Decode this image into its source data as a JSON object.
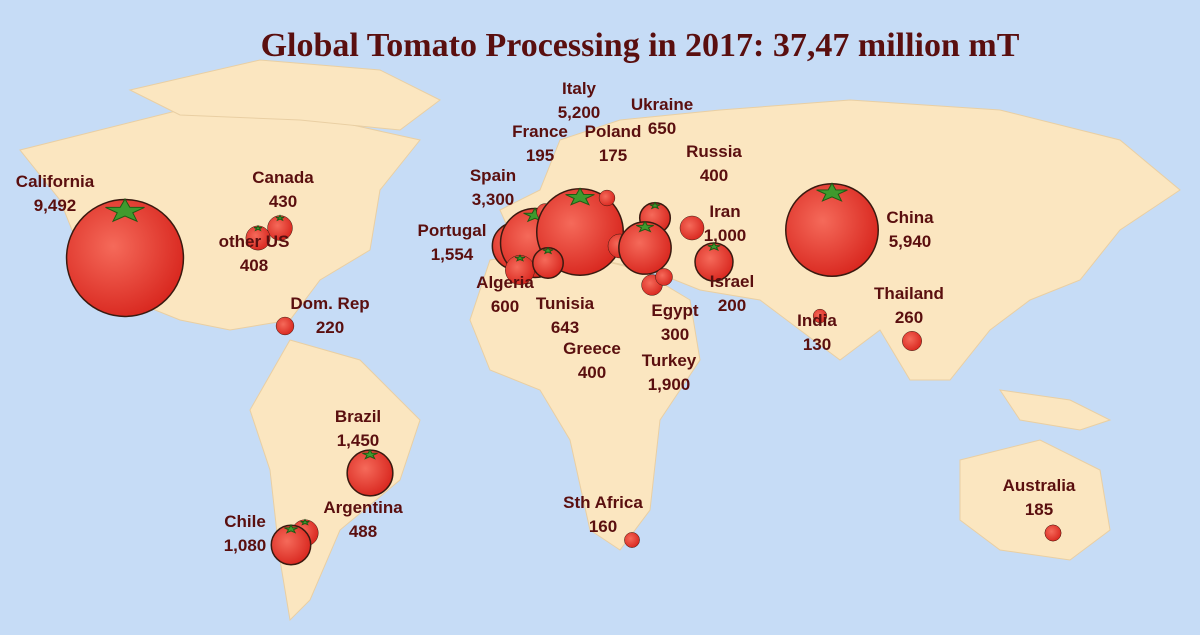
{
  "title": "Global Tomato Processing in 2017: 37,47 million mT",
  "regions": [
    {
      "name": "California",
      "value": 9492,
      "label": "9,492"
    },
    {
      "name": "Canada",
      "value": 430,
      "label": "430"
    },
    {
      "name": "other US",
      "value": 408,
      "label": "408"
    },
    {
      "name": "Dom. Rep",
      "value": 220,
      "label": "220"
    },
    {
      "name": "Brazil",
      "value": 1450,
      "label": "1,450"
    },
    {
      "name": "Argentina",
      "value": 488,
      "label": "488"
    },
    {
      "name": "Chile",
      "value": 1080,
      "label": "1,080"
    },
    {
      "name": "Portugal",
      "value": 1554,
      "label": "1,554"
    },
    {
      "name": "Spain",
      "value": 3300,
      "label": "3,300"
    },
    {
      "name": "France",
      "value": 195,
      "label": "195"
    },
    {
      "name": "Italy",
      "value": 5200,
      "label": "5,200"
    },
    {
      "name": "Poland",
      "value": 175,
      "label": "175"
    },
    {
      "name": "Ukraine",
      "value": 650,
      "label": "650"
    },
    {
      "name": "Russia",
      "value": 400,
      "label": "400"
    },
    {
      "name": "Iran",
      "value": 1000,
      "label": "1,000"
    },
    {
      "name": "Algeria",
      "value": 600,
      "label": "600"
    },
    {
      "name": "Tunisia",
      "value": 643,
      "label": "643"
    },
    {
      "name": "Greece",
      "value": 400,
      "label": "400"
    },
    {
      "name": "Turkey",
      "value": 1900,
      "label": "1,900"
    },
    {
      "name": "Egypt",
      "value": 300,
      "label": "300"
    },
    {
      "name": "Israel",
      "value": 200,
      "label": "200"
    },
    {
      "name": "India",
      "value": 130,
      "label": "130"
    },
    {
      "name": "Thailand",
      "value": 260,
      "label": "260"
    },
    {
      "name": "China",
      "value": 5940,
      "label": "5,940"
    },
    {
      "name": "Sth Africa",
      "value": 160,
      "label": "160"
    },
    {
      "name": "Australia",
      "value": 185,
      "label": "185"
    }
  ]
}
